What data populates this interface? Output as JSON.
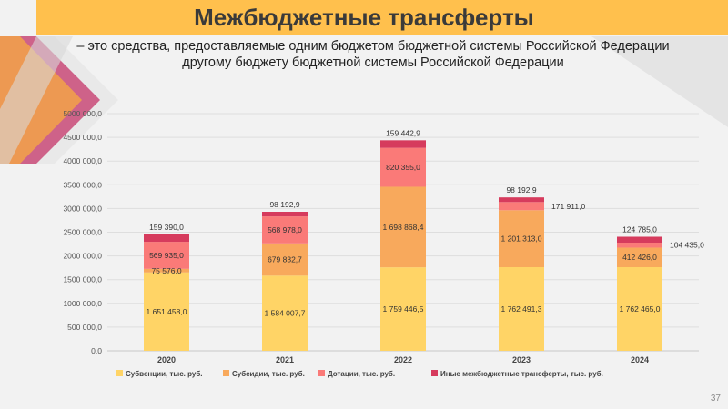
{
  "slide": {
    "title": "Межбюджетные трансферты",
    "subtitle_line1": "– это средства, предоставляемые одним бюджетом бюджетной системы Российской Федерации",
    "subtitle_line2": "другому бюджету  бюджетной системы Российской Федерации",
    "page_number": "37"
  },
  "colors": {
    "title_bar": "#ffc04d",
    "subventions": "#ffd466",
    "subsidies": "#f8a95c",
    "grants": "#fa7a78",
    "other": "#d63b5d"
  },
  "chart_data": {
    "type": "bar",
    "stacked": true,
    "categories": [
      "2020",
      "2021",
      "2022",
      "2023",
      "2024"
    ],
    "ylim": [
      0,
      5000000
    ],
    "yticks": [
      "0,0",
      "500 000,0",
      "1000 000,0",
      "1500 000,0",
      "2000 000,0",
      "2500 000,0",
      "3000 000,0",
      "3500 000,0",
      "4000 000,0",
      "4500 000,0",
      "5000 000,0"
    ],
    "grid": true,
    "legend_position": "bottom",
    "series": [
      {
        "name": "Субвенции, тыс. руб.",
        "values": [
          1651458.0,
          1584007.7,
          1759446.5,
          1762491.3,
          1762465.0
        ],
        "labels": [
          "1 651 458,0",
          "1 584 007,7",
          "1 759 446,5",
          "1 762 491,3",
          "1 762 465,0"
        ]
      },
      {
        "name": "Субсидии, тыс. руб.",
        "values": [
          75576.0,
          679832.7,
          1698868.4,
          1201313.0,
          412426.0
        ],
        "labels": [
          "75 576,0",
          "679 832,7",
          "1 698 868,4",
          "1 201 313,0",
          "412 426,0"
        ]
      },
      {
        "name": "Дотации, тыс. руб.",
        "values": [
          569935.0,
          568978.0,
          820355.0,
          171911.0,
          104435.0
        ],
        "labels": [
          "569 935,0",
          "568 978,0",
          "820 355,0",
          "171 911,0",
          "104 435,0"
        ]
      },
      {
        "name": "Иные межбюджетные трансферты, тыс. руб.",
        "values": [
          159390.0,
          98192.9,
          159442.9,
          98192.9,
          124785.0
        ],
        "labels": [
          "159 390,0",
          "98 192,9",
          "159 442,9",
          "98 192,9",
          "124 785,0"
        ]
      }
    ]
  }
}
